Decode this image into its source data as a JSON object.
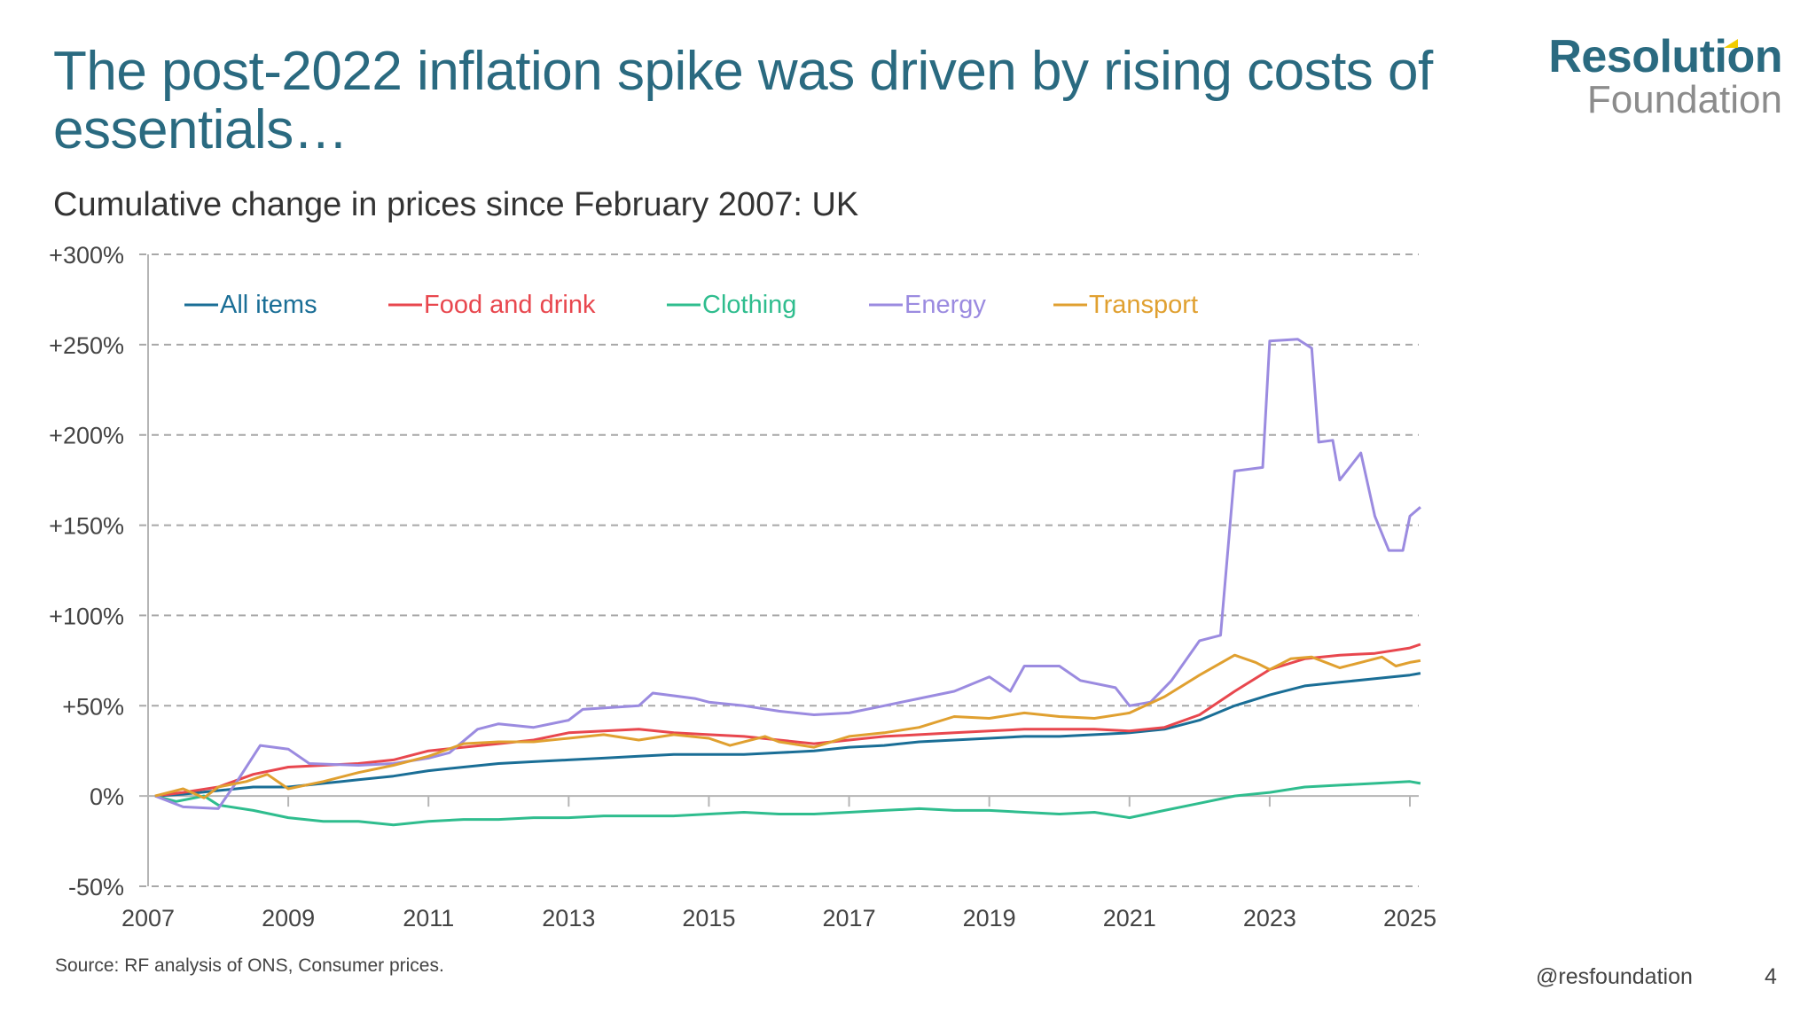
{
  "header": {
    "title": "The post-2022 inflation spike was driven by rising costs of essentials…",
    "subtitle": "Cumulative change in prices since February 2007: UK"
  },
  "logo": {
    "line1": "Resolution",
    "line2": "Foundation",
    "brand_color": "#2a6a80",
    "accent_color": "#f2cc00"
  },
  "footer": {
    "source": "Source: RF analysis of ONS, Consumer prices.",
    "handle": "@resfoundation",
    "page_number": "4"
  },
  "chart_data": {
    "type": "line",
    "title": "Cumulative change in prices since February 2007: UK",
    "xlabel": "",
    "ylabel": "",
    "xlim": [
      2007,
      2025.2
    ],
    "ylim": [
      -50,
      300
    ],
    "x_ticks": [
      2007,
      2009,
      2011,
      2013,
      2015,
      2017,
      2019,
      2021,
      2023,
      2025
    ],
    "x_tick_labels": [
      "2007",
      "2009",
      "2011",
      "2013",
      "2015",
      "2017",
      "2019",
      "2021",
      "2023",
      "2025"
    ],
    "y_ticks": [
      -50,
      0,
      50,
      100,
      150,
      200,
      250,
      300
    ],
    "y_tick_labels": [
      "-50%",
      "0%",
      "+50%",
      "+100%",
      "+150%",
      "+200%",
      "+250%",
      "+300%"
    ],
    "grid": "horizontal-dashed",
    "legend_position": "top-left",
    "series": [
      {
        "name": "All items",
        "color": "#1a6e96",
        "points": [
          [
            2007.1,
            0
          ],
          [
            2007.5,
            1
          ],
          [
            2008,
            3
          ],
          [
            2008.5,
            5
          ],
          [
            2009,
            5
          ],
          [
            2009.5,
            7
          ],
          [
            2010,
            9
          ],
          [
            2010.5,
            11
          ],
          [
            2011,
            14
          ],
          [
            2011.5,
            16
          ],
          [
            2012,
            18
          ],
          [
            2012.5,
            19
          ],
          [
            2013,
            20
          ],
          [
            2013.5,
            21
          ],
          [
            2014,
            22
          ],
          [
            2014.5,
            23
          ],
          [
            2015,
            23
          ],
          [
            2015.5,
            23
          ],
          [
            2016,
            24
          ],
          [
            2016.5,
            25
          ],
          [
            2017,
            27
          ],
          [
            2017.5,
            28
          ],
          [
            2018,
            30
          ],
          [
            2018.5,
            31
          ],
          [
            2019,
            32
          ],
          [
            2019.5,
            33
          ],
          [
            2020,
            33
          ],
          [
            2020.5,
            34
          ],
          [
            2021,
            35
          ],
          [
            2021.5,
            37
          ],
          [
            2022,
            42
          ],
          [
            2022.5,
            50
          ],
          [
            2023,
            56
          ],
          [
            2023.5,
            61
          ],
          [
            2024,
            63
          ],
          [
            2024.5,
            65
          ],
          [
            2025,
            67
          ],
          [
            2025.15,
            68
          ]
        ]
      },
      {
        "name": "Food and drink",
        "color": "#e8474e",
        "points": [
          [
            2007.1,
            0
          ],
          [
            2007.5,
            2
          ],
          [
            2008,
            5
          ],
          [
            2008.5,
            12
          ],
          [
            2009,
            16
          ],
          [
            2009.5,
            17
          ],
          [
            2010,
            18
          ],
          [
            2010.5,
            20
          ],
          [
            2011,
            25
          ],
          [
            2011.5,
            27
          ],
          [
            2012,
            29
          ],
          [
            2012.5,
            31
          ],
          [
            2013,
            35
          ],
          [
            2013.5,
            36
          ],
          [
            2014,
            37
          ],
          [
            2014.5,
            35
          ],
          [
            2015,
            34
          ],
          [
            2015.5,
            33
          ],
          [
            2016,
            31
          ],
          [
            2016.5,
            29
          ],
          [
            2017,
            31
          ],
          [
            2017.5,
            33
          ],
          [
            2018,
            34
          ],
          [
            2018.5,
            35
          ],
          [
            2019,
            36
          ],
          [
            2019.5,
            37
          ],
          [
            2020,
            37
          ],
          [
            2020.5,
            37
          ],
          [
            2021,
            36
          ],
          [
            2021.5,
            38
          ],
          [
            2022,
            45
          ],
          [
            2022.5,
            58
          ],
          [
            2023,
            70
          ],
          [
            2023.5,
            76
          ],
          [
            2024,
            78
          ],
          [
            2024.5,
            79
          ],
          [
            2025,
            82
          ],
          [
            2025.15,
            84
          ]
        ]
      },
      {
        "name": "Clothing",
        "color": "#2fbd8e",
        "points": [
          [
            2007.1,
            0
          ],
          [
            2007.4,
            -3
          ],
          [
            2007.8,
            0
          ],
          [
            2008,
            -5
          ],
          [
            2008.5,
            -8
          ],
          [
            2009,
            -12
          ],
          [
            2009.5,
            -14
          ],
          [
            2010,
            -14
          ],
          [
            2010.5,
            -16
          ],
          [
            2011,
            -14
          ],
          [
            2011.5,
            -13
          ],
          [
            2012,
            -13
          ],
          [
            2012.5,
            -12
          ],
          [
            2013,
            -12
          ],
          [
            2013.5,
            -11
          ],
          [
            2014,
            -11
          ],
          [
            2014.5,
            -11
          ],
          [
            2015,
            -10
          ],
          [
            2015.5,
            -9
          ],
          [
            2016,
            -10
          ],
          [
            2016.5,
            -10
          ],
          [
            2017,
            -9
          ],
          [
            2017.5,
            -8
          ],
          [
            2018,
            -7
          ],
          [
            2018.5,
            -8
          ],
          [
            2019,
            -8
          ],
          [
            2019.5,
            -9
          ],
          [
            2020,
            -10
          ],
          [
            2020.5,
            -9
          ],
          [
            2021,
            -12
          ],
          [
            2021.5,
            -8
          ],
          [
            2022,
            -4
          ],
          [
            2022.5,
            0
          ],
          [
            2023,
            2
          ],
          [
            2023.5,
            5
          ],
          [
            2024,
            6
          ],
          [
            2024.5,
            7
          ],
          [
            2025,
            8
          ],
          [
            2025.15,
            7
          ]
        ]
      },
      {
        "name": "Energy",
        "color": "#9b8be0",
        "points": [
          [
            2007.1,
            0
          ],
          [
            2007.5,
            -6
          ],
          [
            2008,
            -7
          ],
          [
            2008.3,
            10
          ],
          [
            2008.6,
            28
          ],
          [
            2009,
            26
          ],
          [
            2009.3,
            18
          ],
          [
            2010,
            17
          ],
          [
            2010.5,
            18
          ],
          [
            2011,
            21
          ],
          [
            2011.3,
            24
          ],
          [
            2011.7,
            37
          ],
          [
            2012,
            40
          ],
          [
            2012.5,
            38
          ],
          [
            2013,
            42
          ],
          [
            2013.2,
            48
          ],
          [
            2014,
            50
          ],
          [
            2014.2,
            57
          ],
          [
            2014.8,
            54
          ],
          [
            2015,
            52
          ],
          [
            2015.5,
            50
          ],
          [
            2016,
            47
          ],
          [
            2016.5,
            45
          ],
          [
            2017,
            46
          ],
          [
            2017.5,
            50
          ],
          [
            2018,
            54
          ],
          [
            2018.5,
            58
          ],
          [
            2019,
            66
          ],
          [
            2019.3,
            58
          ],
          [
            2019.5,
            72
          ],
          [
            2020,
            72
          ],
          [
            2020.3,
            64
          ],
          [
            2020.8,
            60
          ],
          [
            2021,
            50
          ],
          [
            2021.3,
            52
          ],
          [
            2021.6,
            64
          ],
          [
            2022,
            86
          ],
          [
            2022.3,
            89
          ],
          [
            2022.5,
            180
          ],
          [
            2022.9,
            182
          ],
          [
            2023,
            252
          ],
          [
            2023.4,
            253
          ],
          [
            2023.6,
            248
          ],
          [
            2023.7,
            196
          ],
          [
            2023.9,
            197
          ],
          [
            2024,
            175
          ],
          [
            2024.3,
            190
          ],
          [
            2024.5,
            155
          ],
          [
            2024.7,
            136
          ],
          [
            2024.9,
            136
          ],
          [
            2025,
            155
          ],
          [
            2025.15,
            160
          ]
        ]
      },
      {
        "name": "Transport",
        "color": "#e0a030",
        "points": [
          [
            2007.1,
            0
          ],
          [
            2007.5,
            4
          ],
          [
            2007.8,
            -1
          ],
          [
            2008,
            5
          ],
          [
            2008.4,
            8
          ],
          [
            2008.7,
            12
          ],
          [
            2009,
            4
          ],
          [
            2009.5,
            8
          ],
          [
            2010,
            13
          ],
          [
            2010.5,
            17
          ],
          [
            2011,
            22
          ],
          [
            2011.5,
            29
          ],
          [
            2012,
            30
          ],
          [
            2012.5,
            30
          ],
          [
            2013,
            32
          ],
          [
            2013.5,
            34
          ],
          [
            2014,
            31
          ],
          [
            2014.5,
            34
          ],
          [
            2015,
            32
          ],
          [
            2015.3,
            28
          ],
          [
            2015.8,
            33
          ],
          [
            2016,
            30
          ],
          [
            2016.5,
            27
          ],
          [
            2017,
            33
          ],
          [
            2017.5,
            35
          ],
          [
            2018,
            38
          ],
          [
            2018.5,
            44
          ],
          [
            2019,
            43
          ],
          [
            2019.5,
            46
          ],
          [
            2020,
            44
          ],
          [
            2020.5,
            43
          ],
          [
            2021,
            46
          ],
          [
            2021.5,
            55
          ],
          [
            2022,
            67
          ],
          [
            2022.5,
            78
          ],
          [
            2022.8,
            74
          ],
          [
            2023,
            70
          ],
          [
            2023.3,
            76
          ],
          [
            2023.6,
            77
          ],
          [
            2024,
            71
          ],
          [
            2024.3,
            74
          ],
          [
            2024.6,
            77
          ],
          [
            2024.8,
            72
          ],
          [
            2025,
            74
          ],
          [
            2025.15,
            75
          ]
        ]
      }
    ]
  }
}
